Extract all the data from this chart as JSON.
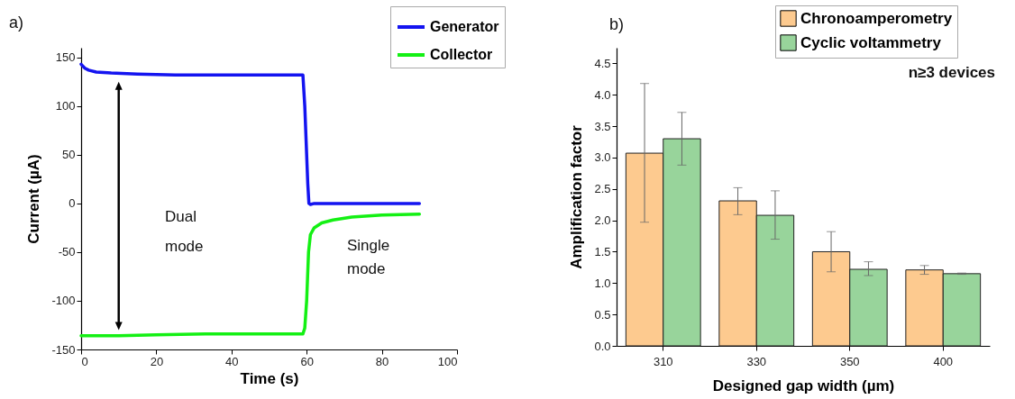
{
  "chart_data": [
    {
      "type": "line",
      "xlabel": "Time (s)",
      "ylabel": "Current (µA)",
      "xlim": [
        0,
        100
      ],
      "xticks": [
        0,
        20,
        40,
        60,
        80,
        100
      ],
      "ylim": [
        -150,
        160
      ],
      "yticks": [
        -150,
        -100,
        -50,
        0,
        50,
        100,
        150
      ],
      "legend": "top right",
      "marker": "none",
      "line_style": "solid",
      "annotations": [
        "a)",
        "Dual mode",
        "Single mode"
      ],
      "series": [
        {
          "name": "Generator",
          "color": "#1414f0",
          "x": [
            0,
            1,
            2,
            4,
            8,
            15,
            25,
            35,
            45,
            59,
            59.5,
            60.3,
            60.6,
            61,
            62,
            90
          ],
          "values": [
            143,
            139,
            137,
            135,
            134,
            133,
            132,
            132,
            132,
            132,
            100,
            20,
            0,
            -1,
            0,
            0
          ]
        },
        {
          "name": "Collector",
          "color": "#14f014",
          "x": [
            0,
            10,
            20,
            33,
            45,
            59,
            59.5,
            60,
            60.5,
            61,
            62,
            64,
            67,
            72,
            80,
            90
          ],
          "values": [
            -136,
            -136,
            -135,
            -134,
            -134,
            -134,
            -128,
            -100,
            -50,
            -32,
            -25,
            -20,
            -17,
            -14,
            -12,
            -11
          ]
        }
      ]
    },
    {
      "type": "bar",
      "xlabel": "Designed gap width (µm)",
      "ylabel": "Amplification factor",
      "categories": [
        "310",
        "330",
        "350",
        "400"
      ],
      "ylim": [
        0,
        4.75
      ],
      "yticks": [
        {
          "value": 0,
          "label": "0.0"
        },
        0.5,
        {
          "value": 1,
          "label": "1.0"
        },
        1.5,
        {
          "value": 2,
          "label": "2.0"
        },
        2.5,
        {
          "value": 3,
          "label": "3.0"
        },
        3.5,
        {
          "value": 4,
          "label": "4.0"
        },
        4.5
      ],
      "legend": "top right",
      "annotations": [
        "b)",
        "n≥3 devices"
      ],
      "series": [
        {
          "name": "Chronoamperometry",
          "color": "#fdca8f",
          "values": [
            3.07,
            2.31,
            1.5,
            1.21
          ],
          "errors": [
            [
              1.97,
              4.18
            ],
            [
              2.09,
              2.52
            ],
            [
              1.18,
              1.82
            ],
            [
              1.14,
              1.28
            ]
          ]
        },
        {
          "name": "Cyclic voltammetry",
          "color": "#98d49b",
          "values": [
            3.3,
            2.08,
            1.22,
            1.15
          ],
          "errors": [
            [
              2.88,
              3.72
            ],
            [
              1.7,
              2.47
            ],
            [
              1.12,
              1.34
            ],
            [
              1.14,
              1.16
            ]
          ]
        }
      ]
    }
  ]
}
